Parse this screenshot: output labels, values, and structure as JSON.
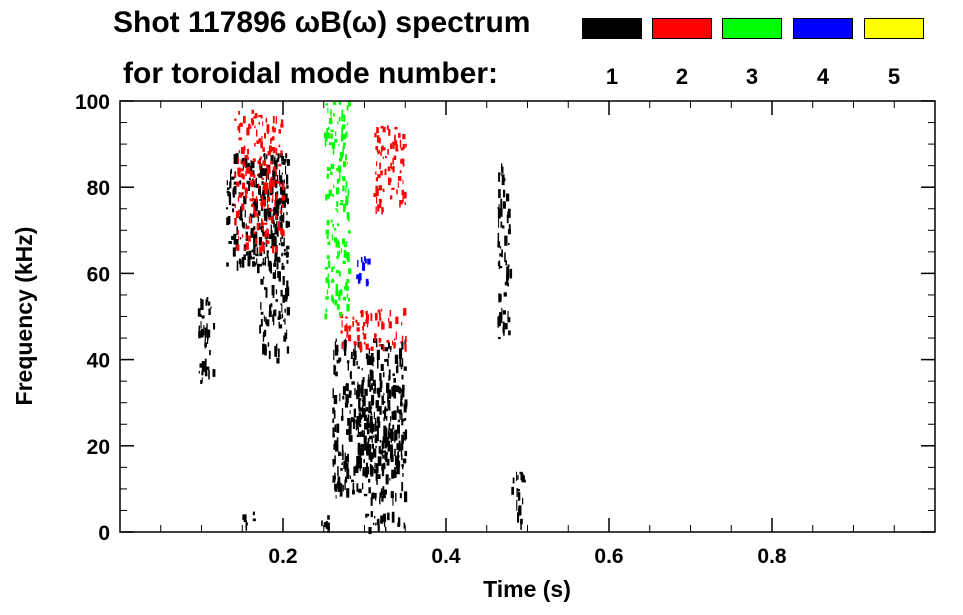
{
  "title": "Shot 117896 ωB(ω) spectrum",
  "subtitle": "for toroidal mode number:",
  "legend": [
    {
      "mode": "1",
      "color": "#000000"
    },
    {
      "mode": "2",
      "color": "#ff0000"
    },
    {
      "mode": "3",
      "color": "#00ff00"
    },
    {
      "mode": "4",
      "color": "#0000ff"
    },
    {
      "mode": "5",
      "color": "#ffff00"
    }
  ],
  "chart_data": {
    "type": "heatmap",
    "title": "Shot 117896 ωB(ω) spectrum",
    "xlabel": "Time (s)",
    "ylabel": "Frequency (kHz)",
    "xlim": [
      0.0,
      1.0
    ],
    "ylim": [
      0,
      100
    ],
    "x_ticks": [
      0.2,
      0.4,
      0.6,
      0.8
    ],
    "x_tick_labels": [
      "0.2",
      "0.4",
      "0.6",
      "0.8"
    ],
    "y_ticks": [
      0,
      20,
      40,
      60,
      80,
      100
    ],
    "y_tick_labels": [
      "0",
      "20",
      "40",
      "60",
      "80",
      "100"
    ],
    "grid": false,
    "legend_position": "top-right",
    "regions": [
      {
        "mode": 1,
        "t": [
          0.095,
          0.115
        ],
        "f": [
          35,
          55
        ]
      },
      {
        "mode": 1,
        "t": [
          0.13,
          0.2
        ],
        "f": [
          62,
          88
        ]
      },
      {
        "mode": 1,
        "t": [
          0.17,
          0.205
        ],
        "f": [
          40,
          88
        ]
      },
      {
        "mode": 1,
        "t": [
          0.15,
          0.17
        ],
        "f": [
          2,
          5
        ]
      },
      {
        "mode": 1,
        "t": [
          0.245,
          0.255
        ],
        "f": [
          2,
          4
        ]
      },
      {
        "mode": 1,
        "t": [
          0.3,
          0.35
        ],
        "f": [
          1,
          5
        ]
      },
      {
        "mode": 1,
        "t": [
          0.26,
          0.35
        ],
        "f": [
          8,
          45
        ]
      },
      {
        "mode": 1,
        "t": [
          0.29,
          0.35
        ],
        "f": [
          15,
          35
        ]
      },
      {
        "mode": 1,
        "t": [
          0.463,
          0.478
        ],
        "f": [
          45,
          86
        ]
      },
      {
        "mode": 1,
        "t": [
          0.48,
          0.495
        ],
        "f": [
          2,
          15
        ]
      },
      {
        "mode": 2,
        "t": [
          0.14,
          0.2
        ],
        "f": [
          66,
          98
        ]
      },
      {
        "mode": 2,
        "t": [
          0.27,
          0.35
        ],
        "f": [
          43,
          52
        ]
      },
      {
        "mode": 2,
        "t": [
          0.31,
          0.35
        ],
        "f": [
          75,
          95
        ]
      },
      {
        "mode": 3,
        "t": [
          0.25,
          0.28
        ],
        "f": [
          50,
          100
        ]
      },
      {
        "mode": 4,
        "t": [
          0.285,
          0.305
        ],
        "f": [
          57,
          64
        ]
      }
    ]
  }
}
